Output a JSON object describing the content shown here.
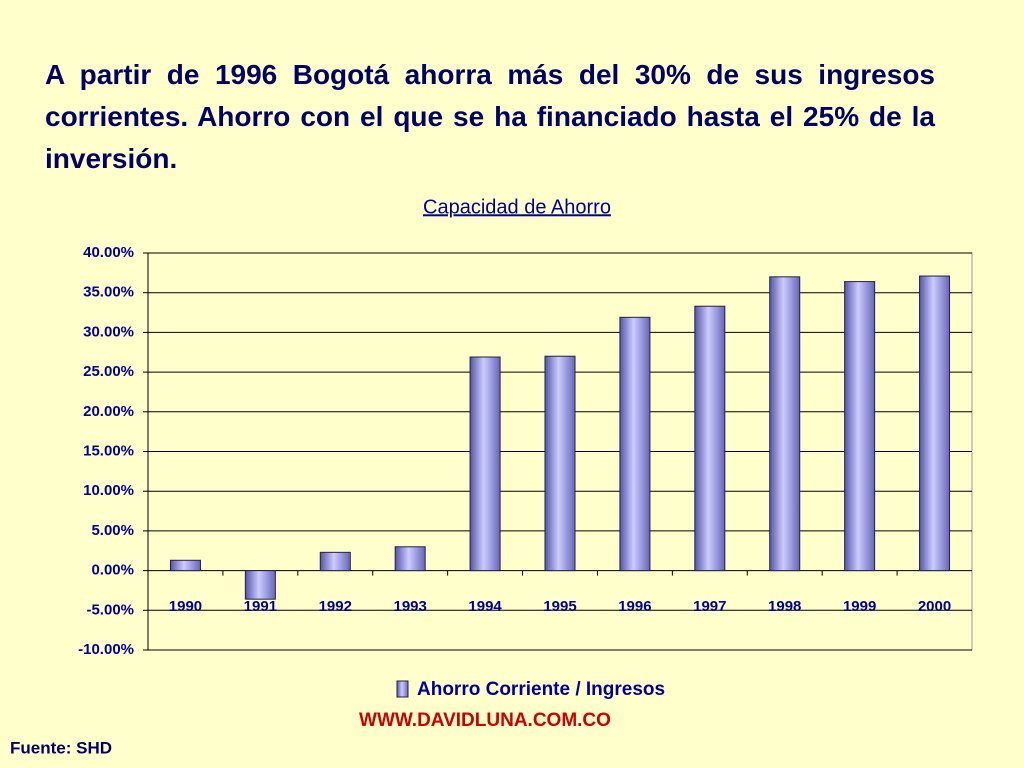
{
  "heading": "A partir de 1996 Bogotá ahorra más del 30% de sus ingresos corrientes. Ahorro con el que se ha financiado hasta el 25% de la inversión.",
  "chart_data": {
    "type": "bar",
    "title": "Capacidad de Ahorro",
    "categories": [
      "1990",
      "1991",
      "1992",
      "1993",
      "1994",
      "1995",
      "1996",
      "1997",
      "1998",
      "1999",
      "2000"
    ],
    "series": [
      {
        "name": "Ahorro Corriente / Ingresos",
        "color": "#9999ff",
        "values": [
          1.3,
          -3.6,
          2.3,
          3.0,
          26.9,
          27.0,
          31.9,
          33.3,
          37.0,
          36.4,
          37.1
        ]
      }
    ],
    "ylim": [
      -10,
      40
    ],
    "yticks": [
      {
        "value": -10,
        "label": "-10.00%"
      },
      {
        "value": -5,
        "label": "-5.00%"
      },
      {
        "value": 0,
        "label": "0.00%"
      },
      {
        "value": 5,
        "label": "5.00%"
      },
      {
        "value": 10,
        "label": "10.00%"
      },
      {
        "value": 15,
        "label": "15.00%"
      },
      {
        "value": 20,
        "label": "20.00%"
      },
      {
        "value": 25,
        "label": "25.00%"
      },
      {
        "value": 30,
        "label": "30.00%"
      },
      {
        "value": 35,
        "label": "35.00%"
      },
      {
        "value": 40,
        "label": "40.00%"
      }
    ],
    "grid": true,
    "legend": "bottom"
  },
  "footer": {
    "website": "WWW.DAVIDLUNA.COM.CO",
    "source": "Fuente: SHD"
  }
}
